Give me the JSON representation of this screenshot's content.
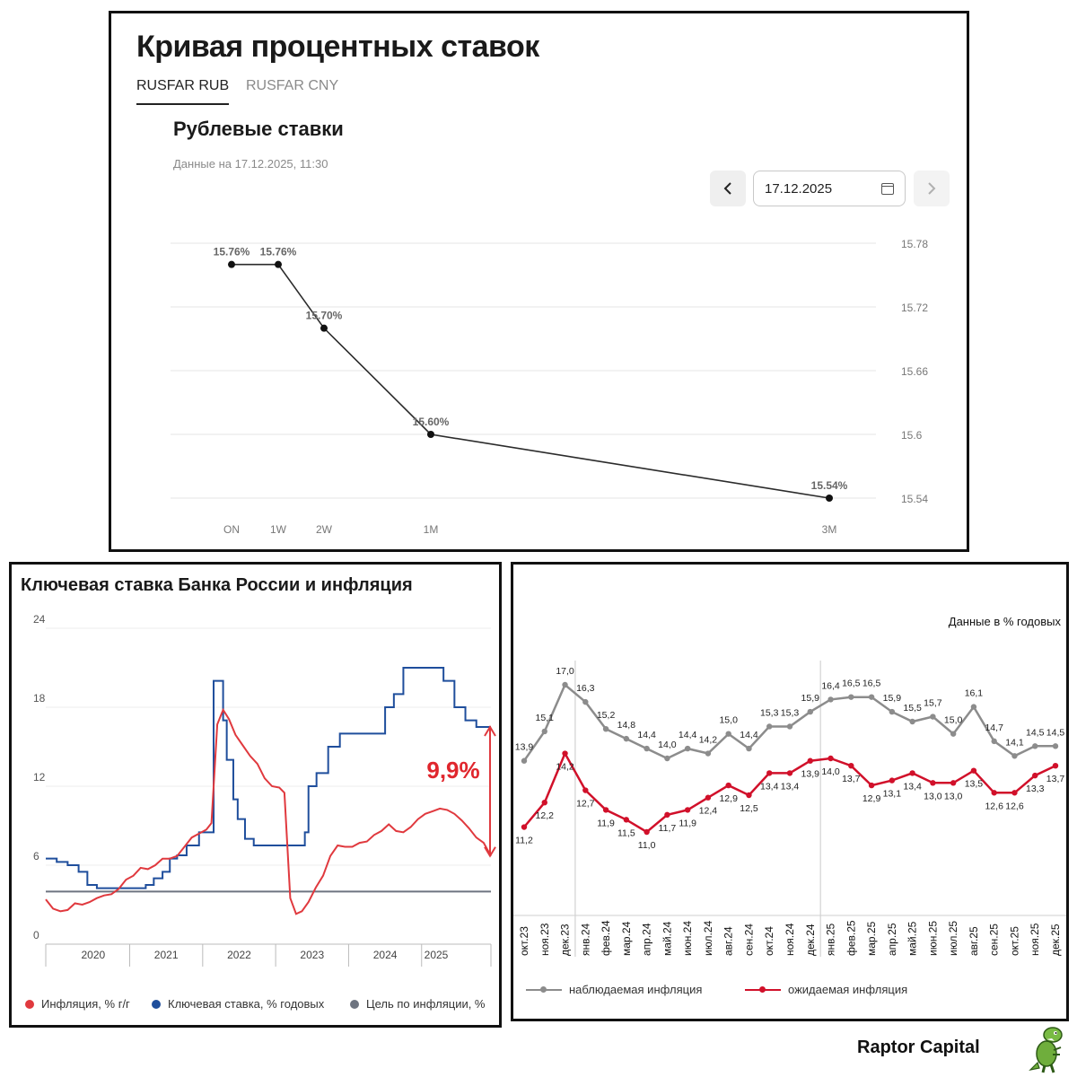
{
  "top_panel": {
    "title": "Кривая процентных ставок",
    "tabs": [
      {
        "label": "RUSFAR RUB",
        "active": true
      },
      {
        "label": "RUSFAR CNY",
        "active": false
      }
    ],
    "subtitle": "Рублевые ставки",
    "as_of": "Данные на 17.12.2025, 11:30",
    "date_value": "17.12.2025",
    "icons": {
      "prev": "chevron-left-icon",
      "next": "chevron-right-icon",
      "calendar": "calendar-icon"
    }
  },
  "bottom_left": {
    "title": "Ключевая ставка Банка России и инфляция",
    "annotation": "9,9%",
    "legend": [
      {
        "label": "Инфляция, % г/г",
        "color": "#e0393e"
      },
      {
        "label": "Ключевая ставка, % годовых",
        "color": "#1f4e9c"
      },
      {
        "label": "Цель по инфляции, %",
        "color": "#6e7480"
      }
    ]
  },
  "bottom_right": {
    "units": "Данные в % годовых",
    "legend": [
      {
        "label": "наблюдаемая инфляция",
        "color": "#8c8c8c"
      },
      {
        "label": "ожидаемая инфляция",
        "color": "#d1102a"
      }
    ]
  },
  "brand": {
    "name": "Raptor Capital",
    "logo": "dinosaur-icon"
  },
  "chart_data": [
    {
      "type": "line",
      "title": "Рублевые ставки",
      "categories": [
        "ON",
        "1W",
        "2W",
        "1M",
        "3M"
      ],
      "x_days": [
        1,
        7,
        14,
        30,
        90
      ],
      "values": [
        15.76,
        15.76,
        15.7,
        15.6,
        15.54
      ],
      "labels": [
        "15.76%",
        "15.76%",
        "15.70%",
        "15.60%",
        "15.54%"
      ],
      "yticks": [
        "15.78",
        "15.72",
        "15.66",
        "15.6",
        "15.54"
      ],
      "ylim": [
        15.54,
        15.78
      ]
    },
    {
      "type": "line",
      "title": "Ключевая ставка Банка России и инфляция",
      "ylim": [
        0,
        24
      ],
      "yticks": [
        0,
        6,
        12,
        18,
        24
      ],
      "xlim": [
        2019.85,
        2025.95
      ],
      "xtick_labels": [
        {
          "label": "2020",
          "x": 2020.5
        },
        {
          "label": "2021",
          "x": 2021.5
        },
        {
          "label": "2022",
          "x": 2022.5
        },
        {
          "label": "2023",
          "x": 2023.5
        },
        {
          "label": "2024",
          "x": 2024.5
        },
        {
          "label": "2025",
          "x": 2025.2
        }
      ],
      "year_dividers": [
        2021.0,
        2022.0,
        2023.0,
        2024.0,
        2025.0
      ],
      "series": [
        {
          "name": "Инфляция, % г/г",
          "points": [
            [
              2019.85,
              3.4
            ],
            [
              2019.95,
              2.7
            ],
            [
              2020.05,
              2.5
            ],
            [
              2020.15,
              2.6
            ],
            [
              2020.25,
              3.1
            ],
            [
              2020.35,
              3.0
            ],
            [
              2020.45,
              3.2
            ],
            [
              2020.55,
              3.5
            ],
            [
              2020.65,
              3.7
            ],
            [
              2020.75,
              3.8
            ],
            [
              2020.85,
              4.2
            ],
            [
              2020.95,
              4.9
            ],
            [
              2021.05,
              5.2
            ],
            [
              2021.15,
              5.8
            ],
            [
              2021.25,
              5.7
            ],
            [
              2021.35,
              6.0
            ],
            [
              2021.45,
              6.5
            ],
            [
              2021.55,
              6.5
            ],
            [
              2021.65,
              6.7
            ],
            [
              2021.75,
              7.4
            ],
            [
              2021.85,
              8.1
            ],
            [
              2021.95,
              8.4
            ],
            [
              2022.05,
              8.7
            ],
            [
              2022.12,
              9.2
            ],
            [
              2022.2,
              16.7
            ],
            [
              2022.28,
              17.8
            ],
            [
              2022.36,
              17.1
            ],
            [
              2022.45,
              15.9
            ],
            [
              2022.55,
              15.1
            ],
            [
              2022.65,
              14.3
            ],
            [
              2022.75,
              13.7
            ],
            [
              2022.85,
              12.6
            ],
            [
              2022.95,
              12.0
            ],
            [
              2023.05,
              11.9
            ],
            [
              2023.12,
              11.5
            ],
            [
              2023.2,
              3.5
            ],
            [
              2023.28,
              2.3
            ],
            [
              2023.36,
              2.5
            ],
            [
              2023.45,
              3.2
            ],
            [
              2023.55,
              4.3
            ],
            [
              2023.65,
              5.2
            ],
            [
              2023.75,
              6.7
            ],
            [
              2023.85,
              7.5
            ],
            [
              2023.95,
              7.4
            ],
            [
              2024.05,
              7.4
            ],
            [
              2024.15,
              7.7
            ],
            [
              2024.25,
              7.8
            ],
            [
              2024.35,
              8.3
            ],
            [
              2024.45,
              8.6
            ],
            [
              2024.55,
              9.1
            ],
            [
              2024.65,
              8.6
            ],
            [
              2024.75,
              8.5
            ],
            [
              2024.85,
              8.9
            ],
            [
              2024.95,
              9.5
            ],
            [
              2025.05,
              9.9
            ],
            [
              2025.15,
              10.1
            ],
            [
              2025.25,
              10.3
            ],
            [
              2025.35,
              10.2
            ],
            [
              2025.45,
              9.9
            ],
            [
              2025.55,
              9.4
            ],
            [
              2025.65,
              8.8
            ],
            [
              2025.75,
              8.1
            ],
            [
              2025.85,
              7.7
            ],
            [
              2025.95,
              6.7
            ]
          ]
        },
        {
          "name": "Ключевая ставка, % годовых",
          "steps": [
            [
              2019.85,
              6.5
            ],
            [
              2020.0,
              6.25
            ],
            [
              2020.15,
              6.0
            ],
            [
              2020.3,
              5.5
            ],
            [
              2020.42,
              4.5
            ],
            [
              2020.55,
              4.25
            ],
            [
              2021.22,
              4.5
            ],
            [
              2021.33,
              5.0
            ],
            [
              2021.45,
              5.5
            ],
            [
              2021.55,
              6.5
            ],
            [
              2021.65,
              6.75
            ],
            [
              2021.78,
              7.5
            ],
            [
              2021.95,
              8.5
            ],
            [
              2022.15,
              20.0
            ],
            [
              2022.28,
              17.0
            ],
            [
              2022.33,
              14.0
            ],
            [
              2022.42,
              11.0
            ],
            [
              2022.48,
              9.5
            ],
            [
              2022.58,
              8.0
            ],
            [
              2022.7,
              7.5
            ],
            [
              2023.4,
              8.5
            ],
            [
              2023.45,
              12.0
            ],
            [
              2023.56,
              13.0
            ],
            [
              2023.72,
              15.0
            ],
            [
              2023.88,
              16.0
            ],
            [
              2024.5,
              18.0
            ],
            [
              2024.62,
              19.0
            ],
            [
              2024.75,
              21.0
            ],
            [
              2025.3,
              20.0
            ],
            [
              2025.45,
              18.0
            ],
            [
              2025.6,
              17.0
            ],
            [
              2025.75,
              16.5
            ],
            [
              2025.95,
              16.5
            ]
          ]
        },
        {
          "name": "Цель по инфляции, %",
          "constant": 4.0
        }
      ],
      "annotation": {
        "text": "9,9%",
        "from": 6.7,
        "to": 16.5
      }
    },
    {
      "type": "line",
      "categories": [
        "окт.23",
        "ноя.23",
        "дек.23",
        "янв.24",
        "фев.24",
        "мар.24",
        "апр.24",
        "май.24",
        "июн.24",
        "июл.24",
        "авг.24",
        "сен.24",
        "окт.24",
        "ноя.24",
        "дек.24",
        "янв.25",
        "фев.25",
        "мар.25",
        "апр.25",
        "май.25",
        "июн.25",
        "июл.25",
        "авг.25",
        "сен.25",
        "окт.25",
        "ноя.25",
        "дек.25"
      ],
      "series": [
        {
          "name": "наблюдаемая инфляция",
          "values": [
            13.9,
            15.1,
            17.0,
            16.3,
            15.2,
            14.8,
            14.4,
            14.0,
            14.4,
            14.2,
            15.0,
            14.4,
            15.3,
            15.3,
            15.9,
            16.4,
            16.5,
            16.5,
            15.9,
            15.5,
            15.7,
            15.0,
            16.1,
            14.7,
            14.1,
            14.5,
            14.5
          ]
        },
        {
          "name": "ожидаемая инфляция",
          "values": [
            11.2,
            12.2,
            14.2,
            12.7,
            11.9,
            11.5,
            11.0,
            11.7,
            11.9,
            12.4,
            12.9,
            12.5,
            13.4,
            13.4,
            13.9,
            14.0,
            13.7,
            12.9,
            13.1,
            13.4,
            13.0,
            13.0,
            13.5,
            12.6,
            12.6,
            13.3,
            13.7
          ]
        }
      ],
      "units": "Данные в % годовых",
      "vlines_after": [
        "дек.23",
        "дек.24"
      ]
    }
  ]
}
